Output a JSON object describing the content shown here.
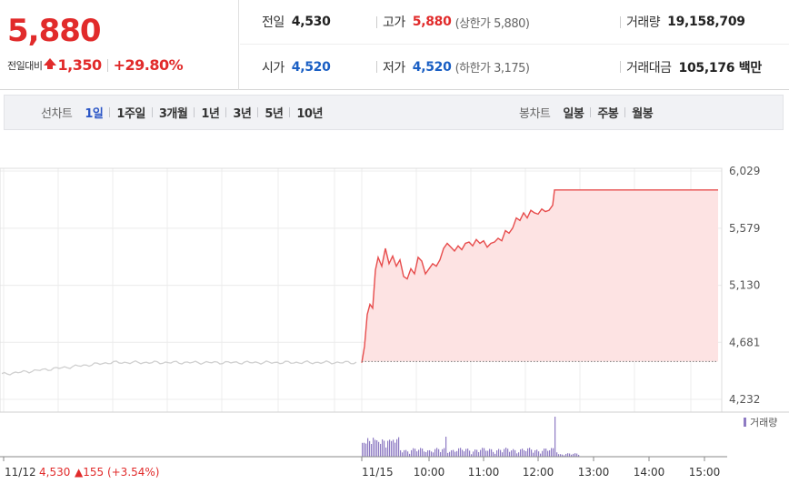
{
  "quote": {
    "price": "5,880",
    "change_label": "전일대비",
    "change_value": "1,350",
    "change_pct": "+29.80%",
    "color_up": "#e12b2b",
    "color_down": "#1a5fc4"
  },
  "stats": {
    "prev_close_label": "전일",
    "prev_close": "4,530",
    "high_label": "고가",
    "high": "5,880",
    "upper_limit": "(상한가 5,880)",
    "volume_label": "거래량",
    "volume": "19,158,709",
    "open_label": "시가",
    "open": "4,520",
    "low_label": "저가",
    "low": "4,520",
    "lower_limit": "(하한가 3,175)",
    "amount_label": "거래대금",
    "amount": "105,176 백만"
  },
  "line_chart": {
    "label": "선차트",
    "options": [
      "1일",
      "1주일",
      "3개월",
      "1년",
      "3년",
      "5년",
      "10년"
    ],
    "active": "1일"
  },
  "candle_chart": {
    "label": "봉차트",
    "options": [
      "일봉",
      "주봉",
      "월봉"
    ]
  },
  "chart_data": {
    "type": "line",
    "y_ticks": [
      "6,029",
      "5,579",
      "5,130",
      "4,681",
      "4,232"
    ],
    "y_tick_values": [
      6029,
      5579,
      5130,
      4681,
      4232
    ],
    "ylim": [
      4232,
      6029
    ],
    "prev_day": {
      "date_label": "11/12",
      "close": "4,530",
      "change": "▲155 (+3.54%)",
      "color": "#cfcfcf"
    },
    "today": {
      "date_label": "11/15",
      "color": "#e74c4c",
      "fill": "#fde3e3"
    },
    "x_tick_labels": [
      "10:00",
      "11:00",
      "12:00",
      "13:00",
      "14:00",
      "15:00"
    ],
    "reference_price": 4530,
    "volume_legend": "거래량",
    "volume_color": "#8e7bc3"
  }
}
